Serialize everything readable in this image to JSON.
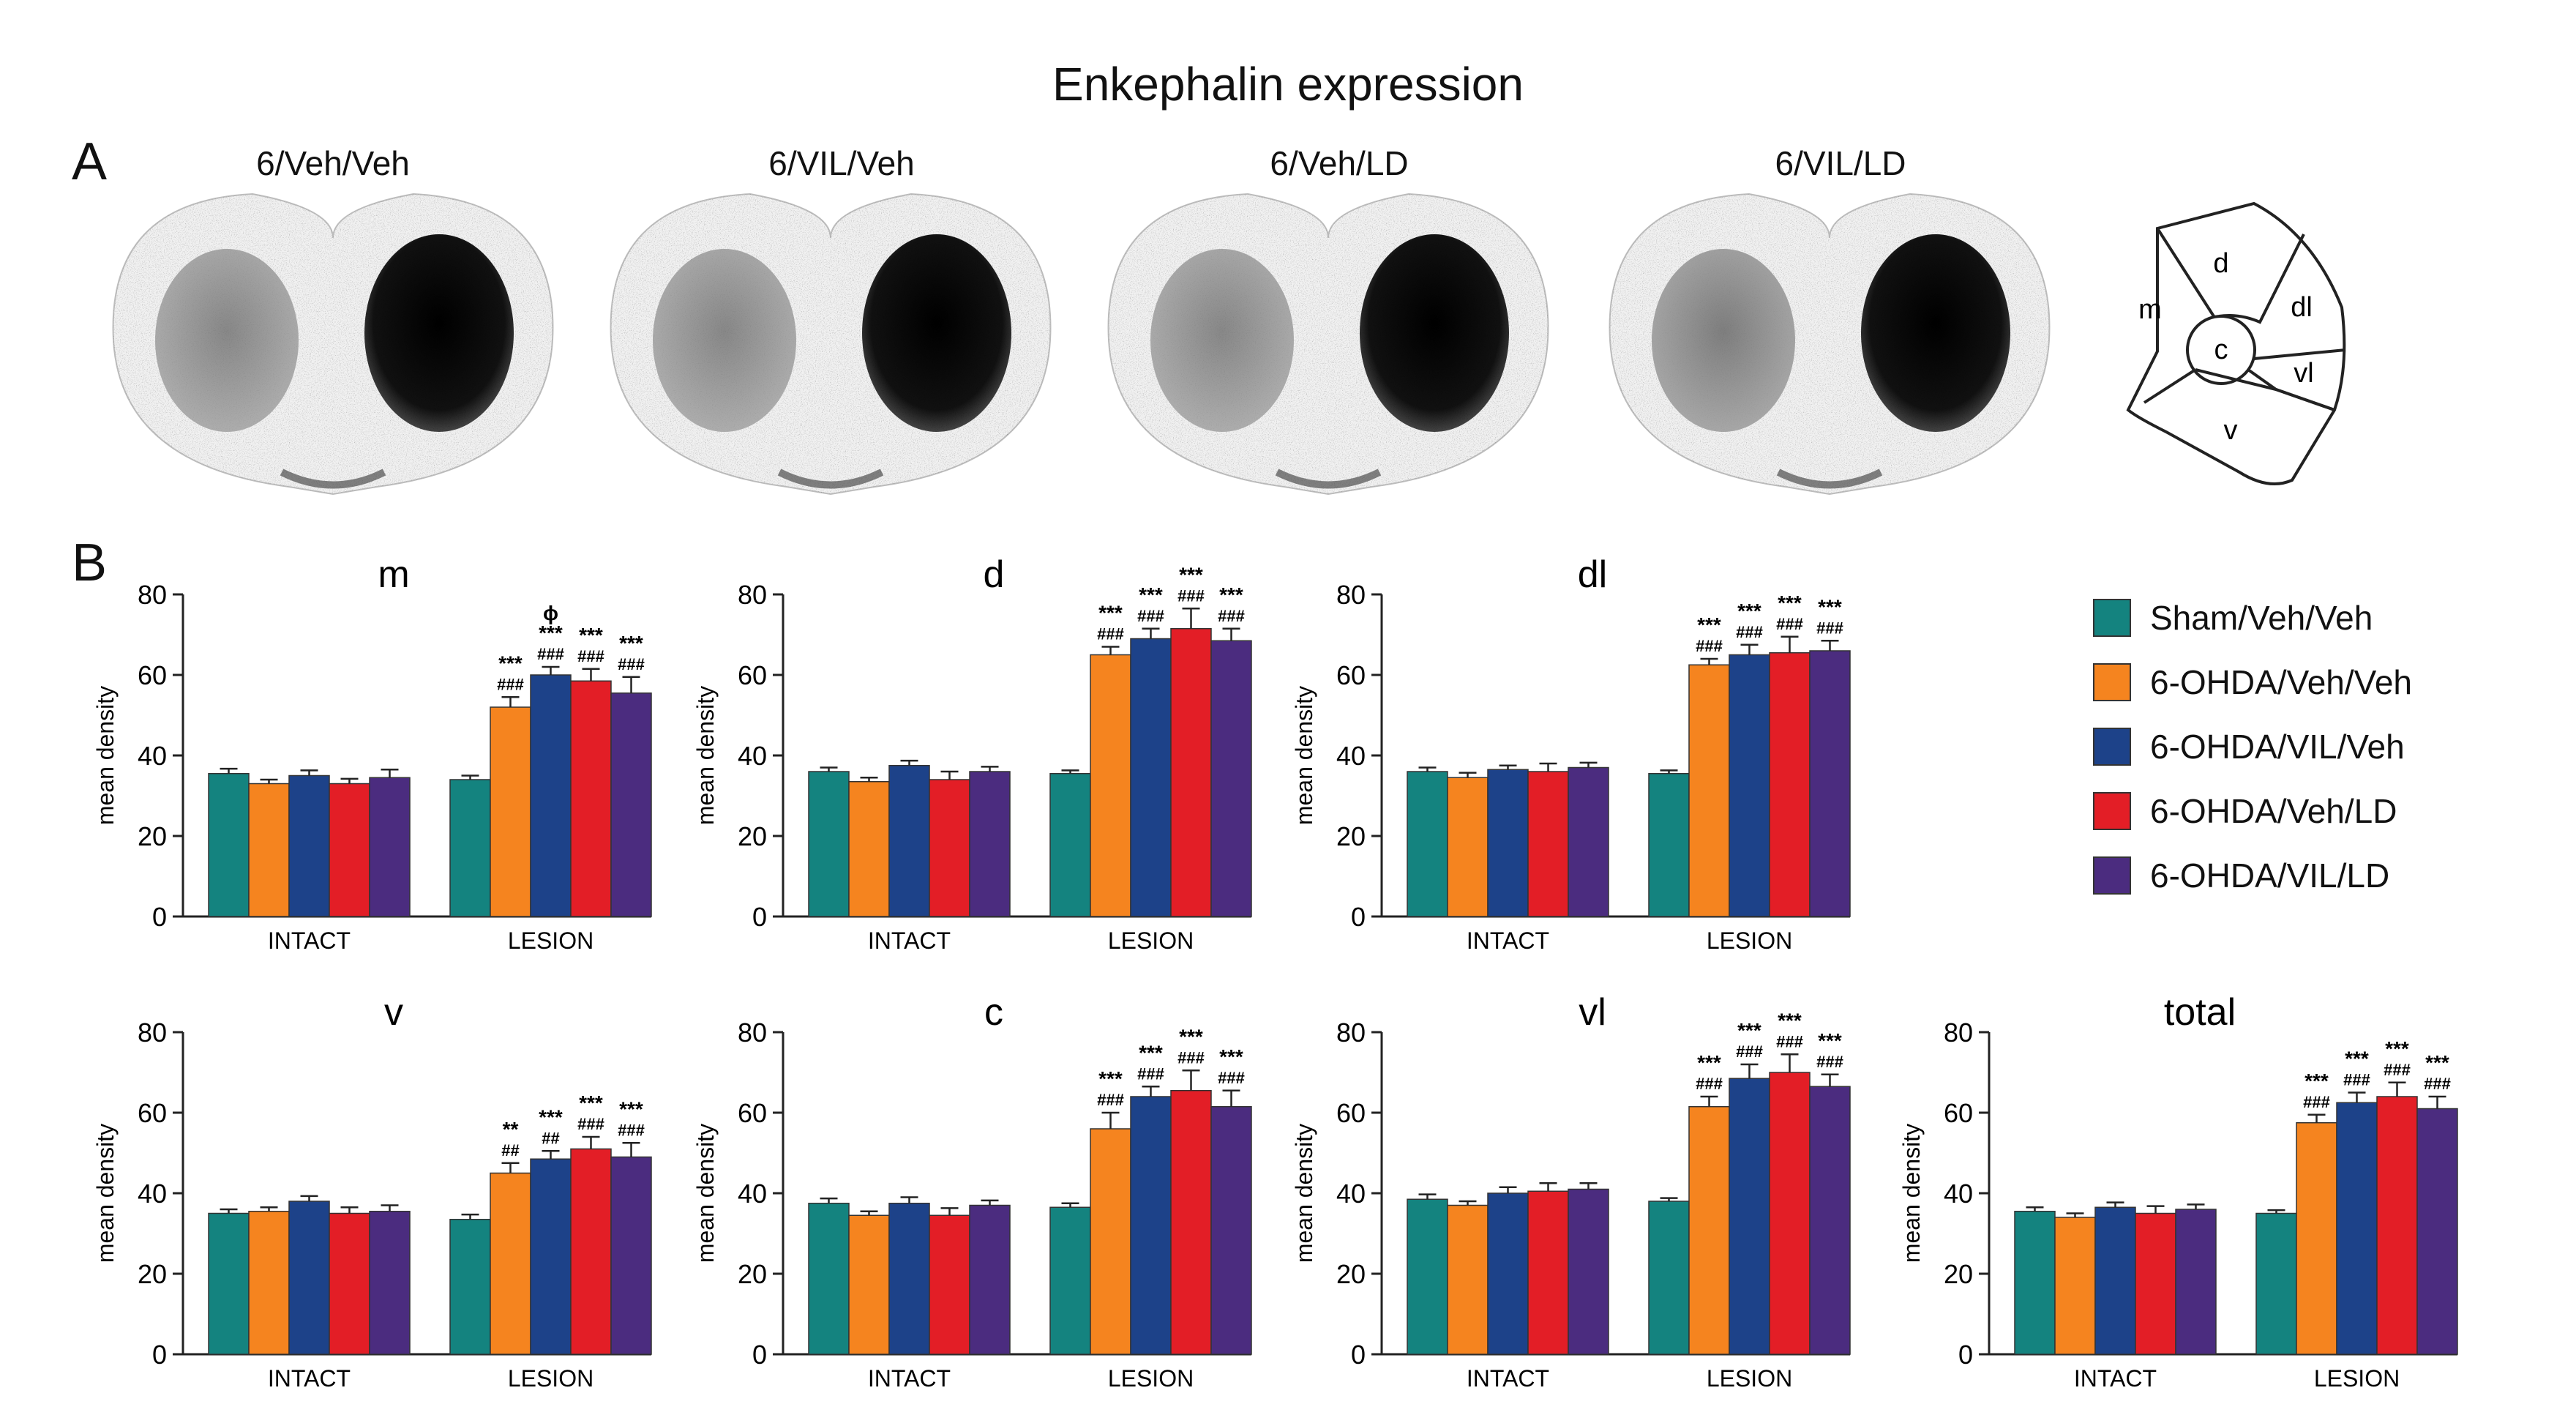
{
  "figure": {
    "title": "Enkephalin expression",
    "panel_a_label": "A",
    "panel_b_label": "B",
    "slice_labels": [
      "6/Veh/Veh",
      "6/VIL/Veh",
      "6/Veh/LD",
      "6/VIL/LD"
    ],
    "schematic_regions": [
      "m",
      "d",
      "dl",
      "c",
      "vl",
      "v"
    ]
  },
  "legend": {
    "items": [
      {
        "label": "Sham/Veh/Veh",
        "color": "#14837f"
      },
      {
        "label": "6-OHDA/Veh/Veh",
        "color": "#f5841f"
      },
      {
        "label": "6-OHDA/VIL/Veh",
        "color": "#1d4289"
      },
      {
        "label": "6-OHDA/Veh/LD",
        "color": "#e31e26"
      },
      {
        "label": "6-OHDA/VIL/LD",
        "color": "#4b2c7f"
      }
    ]
  },
  "chart_data": [
    {
      "type": "bar",
      "title": "m",
      "ylabel": "mean density",
      "ylim": [
        0,
        80
      ],
      "yticks": [
        0,
        20,
        40,
        60,
        80
      ],
      "categories": [
        "INTACT",
        "LESION"
      ],
      "series": [
        {
          "name": "Sham/Veh/Veh",
          "values": [
            35.5,
            34
          ],
          "errors": [
            1.2,
            1
          ]
        },
        {
          "name": "6-OHDA/Veh/Veh",
          "values": [
            33,
            52
          ],
          "errors": [
            1,
            2.5
          ]
        },
        {
          "name": "6-OHDA/VIL/Veh",
          "values": [
            35,
            60
          ],
          "errors": [
            1.3,
            2
          ]
        },
        {
          "name": "6-OHDA/Veh/LD",
          "values": [
            33,
            58.5
          ],
          "errors": [
            1.2,
            3
          ]
        },
        {
          "name": "6-OHDA/VIL/LD",
          "values": [
            34.5,
            55.5
          ],
          "errors": [
            2,
            4
          ]
        }
      ],
      "annotations": [
        [
          [],
          []
        ],
        [
          [],
          [
            "***",
            "###"
          ]
        ],
        [
          [],
          [
            "ϕ",
            "***",
            "###"
          ]
        ],
        [
          [],
          [
            "***",
            "###"
          ]
        ],
        [
          [],
          [
            "***",
            "###"
          ]
        ]
      ]
    },
    {
      "type": "bar",
      "title": "d",
      "ylabel": "mean density",
      "ylim": [
        0,
        80
      ],
      "yticks": [
        0,
        20,
        40,
        60,
        80
      ],
      "categories": [
        "INTACT",
        "LESION"
      ],
      "series": [
        {
          "name": "Sham/Veh/Veh",
          "values": [
            36,
            35.5
          ],
          "errors": [
            1,
            0.8
          ]
        },
        {
          "name": "6-OHDA/Veh/Veh",
          "values": [
            33.5,
            65
          ],
          "errors": [
            1,
            2
          ]
        },
        {
          "name": "6-OHDA/VIL/Veh",
          "values": [
            37.5,
            69
          ],
          "errors": [
            1.2,
            2.5
          ]
        },
        {
          "name": "6-OHDA/Veh/LD",
          "values": [
            34,
            71.5
          ],
          "errors": [
            2,
            5
          ]
        },
        {
          "name": "6-OHDA/VIL/LD",
          "values": [
            36,
            68.5
          ],
          "errors": [
            1.2,
            3
          ]
        }
      ],
      "annotations": [
        [
          [],
          []
        ],
        [
          [],
          [
            "***",
            "###"
          ]
        ],
        [
          [],
          [
            "***",
            "###"
          ]
        ],
        [
          [],
          [
            "***",
            "###"
          ]
        ],
        [
          [],
          [
            "***",
            "###"
          ]
        ]
      ]
    },
    {
      "type": "bar",
      "title": "dl",
      "ylabel": "mean density",
      "ylim": [
        0,
        80
      ],
      "yticks": [
        0,
        20,
        40,
        60,
        80
      ],
      "categories": [
        "INTACT",
        "LESION"
      ],
      "series": [
        {
          "name": "Sham/Veh/Veh",
          "values": [
            36,
            35.5
          ],
          "errors": [
            1,
            0.8
          ]
        },
        {
          "name": "6-OHDA/Veh/Veh",
          "values": [
            34.5,
            62.5
          ],
          "errors": [
            1.2,
            1.5
          ]
        },
        {
          "name": "6-OHDA/VIL/Veh",
          "values": [
            36.5,
            65
          ],
          "errors": [
            1,
            2.5
          ]
        },
        {
          "name": "6-OHDA/Veh/LD",
          "values": [
            36,
            65.5
          ],
          "errors": [
            2,
            4
          ]
        },
        {
          "name": "6-OHDA/VIL/LD",
          "values": [
            37,
            66
          ],
          "errors": [
            1.2,
            2.5
          ]
        }
      ],
      "annotations": [
        [
          [],
          []
        ],
        [
          [],
          [
            "***",
            "###"
          ]
        ],
        [
          [],
          [
            "***",
            "###"
          ]
        ],
        [
          [],
          [
            "***",
            "###"
          ]
        ],
        [
          [],
          [
            "***",
            "###"
          ]
        ]
      ]
    },
    {
      "type": "bar",
      "title": "v",
      "ylabel": "mean density",
      "ylim": [
        0,
        80
      ],
      "yticks": [
        0,
        20,
        40,
        60,
        80
      ],
      "categories": [
        "INTACT",
        "LESION"
      ],
      "series": [
        {
          "name": "Sham/Veh/Veh",
          "values": [
            35,
            33.5
          ],
          "errors": [
            1,
            1.2
          ]
        },
        {
          "name": "6-OHDA/Veh/Veh",
          "values": [
            35.5,
            45
          ],
          "errors": [
            1,
            2.5
          ]
        },
        {
          "name": "6-OHDA/VIL/Veh",
          "values": [
            38,
            48.5
          ],
          "errors": [
            1.3,
            2
          ]
        },
        {
          "name": "6-OHDA/Veh/LD",
          "values": [
            35,
            51
          ],
          "errors": [
            1.5,
            3
          ]
        },
        {
          "name": "6-OHDA/VIL/LD",
          "values": [
            35.5,
            49
          ],
          "errors": [
            1.5,
            3.5
          ]
        }
      ],
      "annotations": [
        [
          [],
          []
        ],
        [
          [],
          [
            "**",
            "##"
          ]
        ],
        [
          [],
          [
            "***",
            "##"
          ]
        ],
        [
          [],
          [
            "***",
            "###"
          ]
        ],
        [
          [],
          [
            "***",
            "###"
          ]
        ]
      ]
    },
    {
      "type": "bar",
      "title": "c",
      "ylabel": "mean density",
      "ylim": [
        0,
        80
      ],
      "yticks": [
        0,
        20,
        40,
        60,
        80
      ],
      "categories": [
        "INTACT",
        "LESION"
      ],
      "series": [
        {
          "name": "Sham/Veh/Veh",
          "values": [
            37.5,
            36.5
          ],
          "errors": [
            1.2,
            1
          ]
        },
        {
          "name": "6-OHDA/Veh/Veh",
          "values": [
            34.5,
            56
          ],
          "errors": [
            1,
            4
          ]
        },
        {
          "name": "6-OHDA/VIL/Veh",
          "values": [
            37.5,
            64
          ],
          "errors": [
            1.5,
            2.5
          ]
        },
        {
          "name": "6-OHDA/Veh/LD",
          "values": [
            34.5,
            65.5
          ],
          "errors": [
            1.8,
            5
          ]
        },
        {
          "name": "6-OHDA/VIL/LD",
          "values": [
            37,
            61.5
          ],
          "errors": [
            1.2,
            4
          ]
        }
      ],
      "annotations": [
        [
          [],
          []
        ],
        [
          [],
          [
            "***",
            "###"
          ]
        ],
        [
          [],
          [
            "***",
            "###"
          ]
        ],
        [
          [],
          [
            "***",
            "###"
          ]
        ],
        [
          [],
          [
            "***",
            "###"
          ]
        ]
      ]
    },
    {
      "type": "bar",
      "title": "vl",
      "ylabel": "mean density",
      "ylim": [
        0,
        80
      ],
      "yticks": [
        0,
        20,
        40,
        60,
        80
      ],
      "categories": [
        "INTACT",
        "LESION"
      ],
      "series": [
        {
          "name": "Sham/Veh/Veh",
          "values": [
            38.5,
            38
          ],
          "errors": [
            1.2,
            0.8
          ]
        },
        {
          "name": "6-OHDA/Veh/Veh",
          "values": [
            37,
            61.5
          ],
          "errors": [
            1,
            2.5
          ]
        },
        {
          "name": "6-OHDA/VIL/Veh",
          "values": [
            40,
            68.5
          ],
          "errors": [
            1.5,
            3.5
          ]
        },
        {
          "name": "6-OHDA/Veh/LD",
          "values": [
            40.5,
            70
          ],
          "errors": [
            2,
            4.5
          ]
        },
        {
          "name": "6-OHDA/VIL/LD",
          "values": [
            41,
            66.5
          ],
          "errors": [
            1.5,
            3
          ]
        }
      ],
      "annotations": [
        [
          [],
          []
        ],
        [
          [],
          [
            "***",
            "###"
          ]
        ],
        [
          [],
          [
            "***",
            "###"
          ]
        ],
        [
          [],
          [
            "***",
            "###"
          ]
        ],
        [
          [],
          [
            "***",
            "###"
          ]
        ]
      ]
    },
    {
      "type": "bar",
      "title": "total",
      "ylabel": "mean density",
      "ylim": [
        0,
        80
      ],
      "yticks": [
        0,
        20,
        40,
        60,
        80
      ],
      "categories": [
        "INTACT",
        "LESION"
      ],
      "series": [
        {
          "name": "Sham/Veh/Veh",
          "values": [
            35.5,
            35
          ],
          "errors": [
            1,
            0.8
          ]
        },
        {
          "name": "6-OHDA/Veh/Veh",
          "values": [
            34,
            57.5
          ],
          "errors": [
            1,
            2
          ]
        },
        {
          "name": "6-OHDA/VIL/Veh",
          "values": [
            36.5,
            62.5
          ],
          "errors": [
            1.2,
            2.5
          ]
        },
        {
          "name": "6-OHDA/Veh/LD",
          "values": [
            35,
            64
          ],
          "errors": [
            1.8,
            3.5
          ]
        },
        {
          "name": "6-OHDA/VIL/LD",
          "values": [
            36,
            61
          ],
          "errors": [
            1.2,
            3
          ]
        }
      ],
      "annotations": [
        [
          [],
          []
        ],
        [
          [],
          [
            "***",
            "###"
          ]
        ],
        [
          [],
          [
            "***",
            "###"
          ]
        ],
        [
          [],
          [
            "***",
            "###"
          ]
        ],
        [
          [],
          [
            "***",
            "###"
          ]
        ]
      ]
    }
  ]
}
